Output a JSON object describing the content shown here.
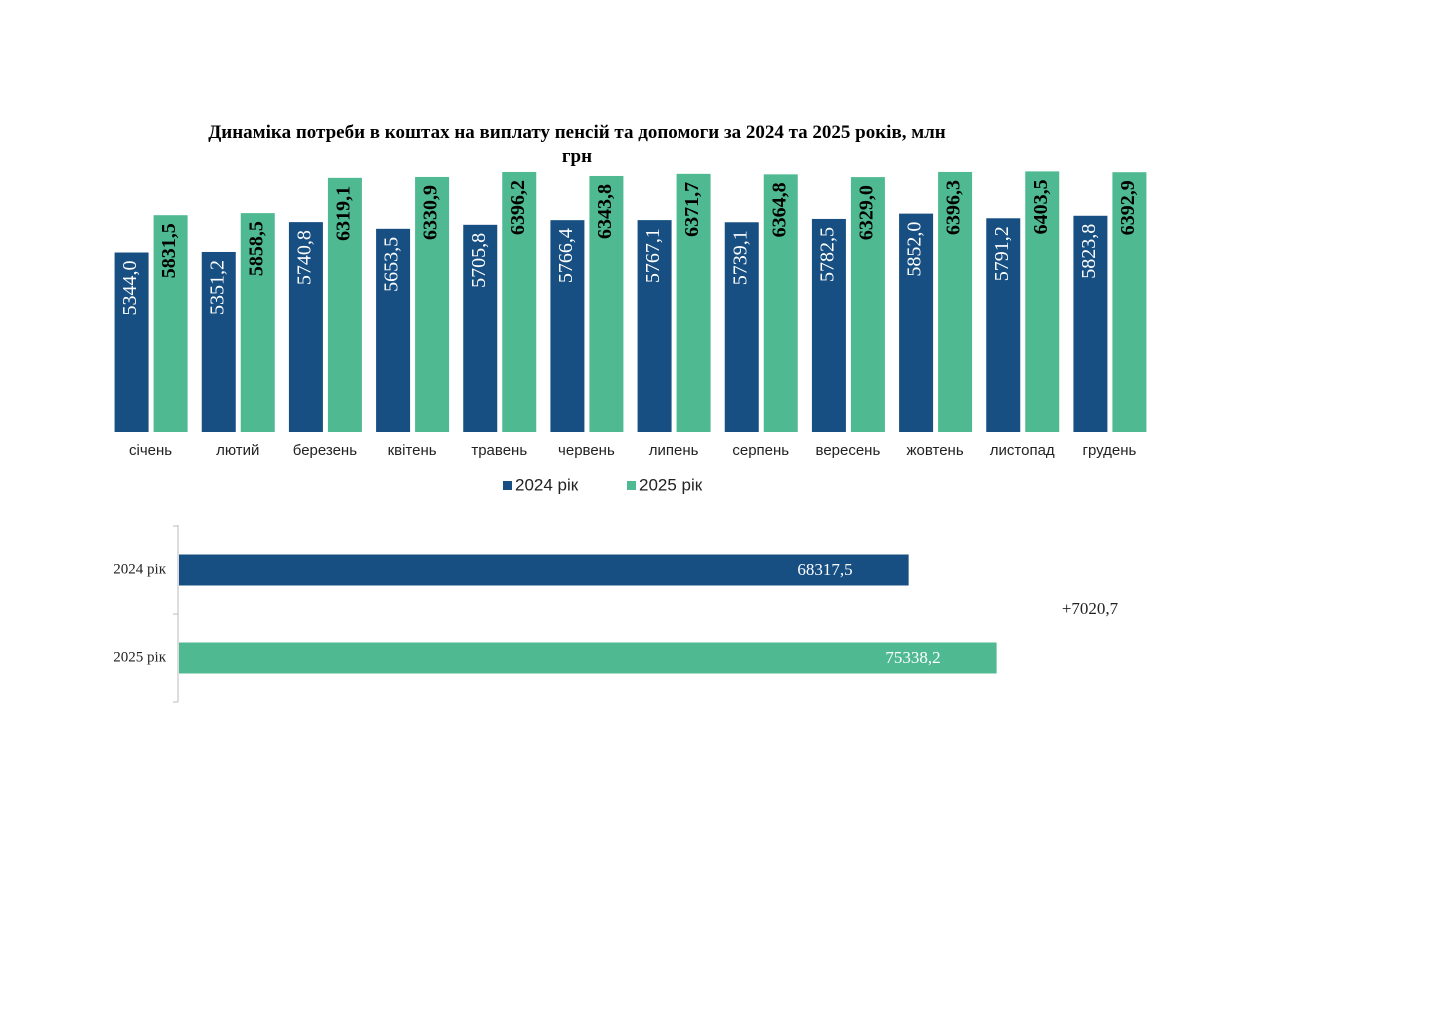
{
  "chart_data": [
    {
      "type": "bar",
      "title": "Динаміка потреби в коштах на виплату пенсій та допомоги за 2024 та 2025 років, млн грн",
      "categories": [
        "січень",
        "лютий",
        "березень",
        "квітень",
        "травень",
        "червень",
        "липень",
        "серпень",
        "вересень",
        "жовтень",
        "листопад",
        "грудень"
      ],
      "series": [
        {
          "name": "2024 рік",
          "color": "#174f82",
          "values": [
            5344.0,
            5351.2,
            5740.8,
            5653.5,
            5705.8,
            5766.4,
            5767.1,
            5739.1,
            5782.5,
            5852.0,
            5791.2,
            5823.8
          ],
          "value_labels": [
            "5344,0",
            "5351,2",
            "5740,8",
            "5653,5",
            "5705,8",
            "5766,4",
            "5767,1",
            "5739,1",
            "5782,5",
            "5852,0",
            "5791,2",
            "5823,8"
          ]
        },
        {
          "name": "2025 рік",
          "color": "#4fba92",
          "values": [
            5831.5,
            5858.5,
            6319.1,
            6330.9,
            6396.2,
            6343.8,
            6371.7,
            6364.8,
            6329.0,
            6396.3,
            6403.5,
            6392.9
          ],
          "value_labels": [
            "5831,5",
            "5858,5",
            "6319,1",
            "6330,9",
            "6396,2",
            "6343,8",
            "6371,7",
            "6364,8",
            "6329,0",
            "6396,3",
            "6403,5",
            "6392,9"
          ]
        }
      ],
      "ylim": [
        3000,
        6500
      ],
      "legend": "bottom"
    },
    {
      "type": "bar",
      "orientation": "horizontal",
      "categories": [
        "2024 рік",
        "2025 рік"
      ],
      "values": [
        68317.5,
        75338.2
      ],
      "value_labels": [
        "68317,5",
        "75338,2"
      ],
      "colors": [
        "#174f82",
        "#4fba92"
      ],
      "xlim": [
        10000,
        80000
      ],
      "annotation": "+7020,7"
    }
  ]
}
